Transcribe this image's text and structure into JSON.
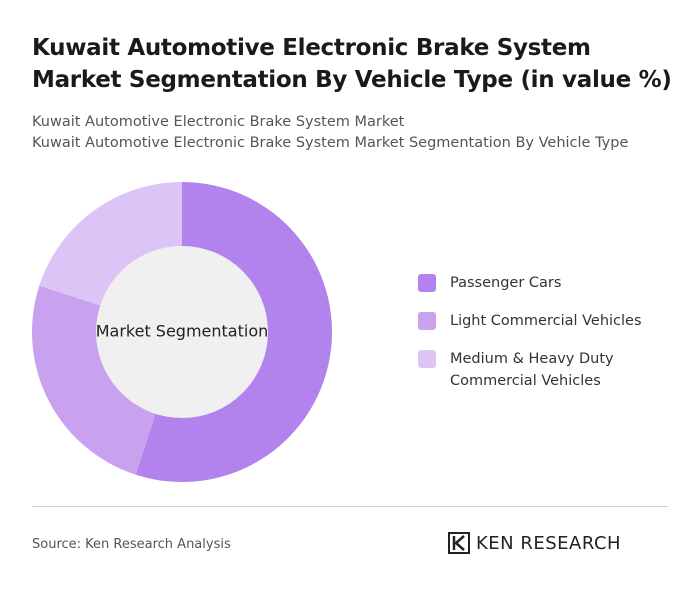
{
  "chart_data": {
    "type": "donut",
    "title": "Kuwait Automotive Electronic Brake System Market Segmentation By Vehicle Type (in value %)",
    "subtitles": [
      "Kuwait Automotive Electronic Brake System Market",
      "Kuwait Automotive Electronic Brake System Market Segmentation By Vehicle Type"
    ],
    "center_label": "Market Segmentation",
    "categories": [
      "Passenger Cars",
      "Light Commercial Vehicles",
      "Medium & Heavy Duty Commercial Vehicles"
    ],
    "values": [
      55,
      25,
      20
    ],
    "colors": [
      "#b283ec",
      "#c8a2ef",
      "#dcc5f6"
    ],
    "source": "Source: Ken Research Analysis",
    "brand": "KEN RESEARCH"
  }
}
